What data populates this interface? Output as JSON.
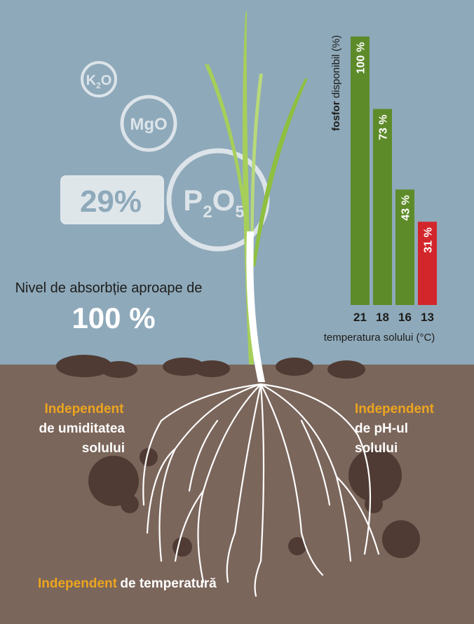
{
  "nutrients": {
    "k2o": [
      "K",
      "2",
      "O"
    ],
    "mgo": "MgO",
    "p2o5": [
      "P",
      "2",
      "O",
      "5"
    ],
    "percent": "29%"
  },
  "absorption": {
    "text": "Nivel de absorbție aproape de",
    "value": "100 %"
  },
  "chart_data": {
    "type": "bar",
    "y_label_bold": "fosfor",
    "y_label": "disponibil (%)",
    "x_label": "temperatura solului (°C)",
    "categories": [
      "21",
      "18",
      "16",
      "13"
    ],
    "values": [
      100,
      73,
      43,
      31
    ],
    "value_labels": [
      "100 %",
      "73 %",
      "43 %",
      "31 %"
    ],
    "colors": [
      "#5e8b29",
      "#5e8b29",
      "#5e8b29",
      "#d3262b"
    ],
    "ylim": [
      0,
      100
    ]
  },
  "notes": {
    "left": {
      "highlight": "Independent",
      "lines": [
        "de umiditatea",
        "solului"
      ]
    },
    "right": {
      "highlight": "Independent",
      "lines": [
        "de pH-ul",
        "solului"
      ]
    },
    "bottom": {
      "highlight": "Independent",
      "text": "de temperatură"
    }
  }
}
